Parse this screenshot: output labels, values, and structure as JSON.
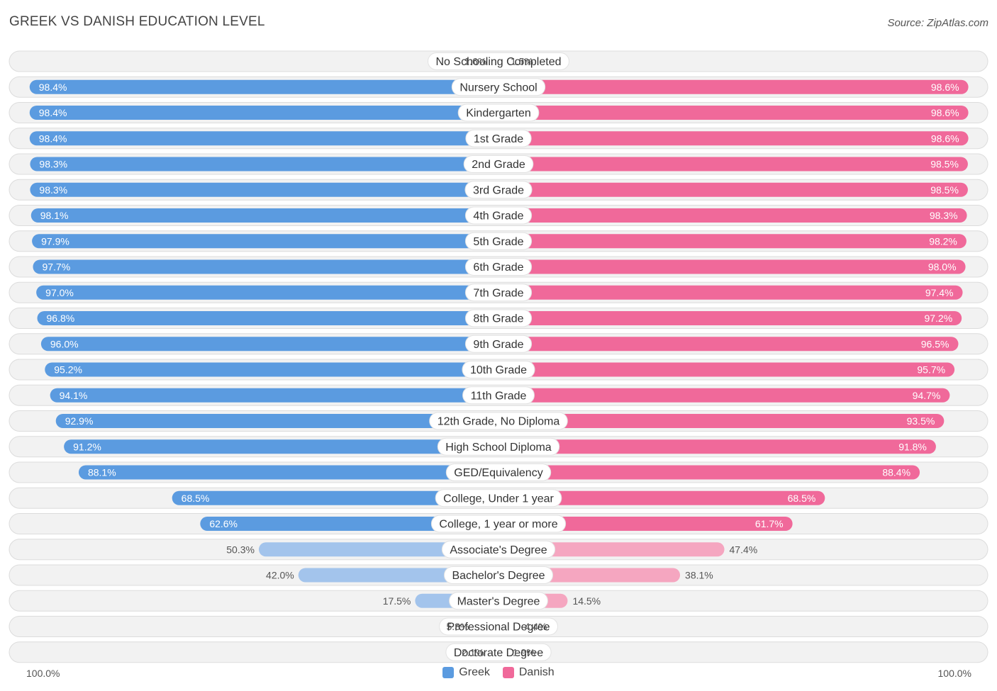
{
  "header": {
    "title": "GREEK VS DANISH EDUCATION LEVEL",
    "source": "Source: ZipAtlas.com"
  },
  "colors": {
    "greek_strong": "#5b9be0",
    "greek_light": "#a3c4ec",
    "danish_strong": "#f0699a",
    "danish_light": "#f5a6c0",
    "row_bg": "#f2f2f2",
    "row_border": "#dcdcdc"
  },
  "legend": {
    "greek_label": "Greek",
    "danish_label": "Danish"
  },
  "axis": {
    "left_label": "100.0%",
    "right_label": "100.0%"
  },
  "chart_data": {
    "type": "bar",
    "title": "GREEK VS DANISH EDUCATION LEVEL",
    "orientation": "horizontal-diverging",
    "xlim": [
      0,
      100
    ],
    "categories": [
      "No Schooling Completed",
      "Nursery School",
      "Kindergarten",
      "1st Grade",
      "2nd Grade",
      "3rd Grade",
      "4th Grade",
      "5th Grade",
      "6th Grade",
      "7th Grade",
      "8th Grade",
      "9th Grade",
      "10th Grade",
      "11th Grade",
      "12th Grade, No Diploma",
      "High School Diploma",
      "GED/Equivalency",
      "College, Under 1 year",
      "College, 1 year or more",
      "Associate's Degree",
      "Bachelor's Degree",
      "Master's Degree",
      "Professional Degree",
      "Doctorate Degree"
    ],
    "series": [
      {
        "name": "Greek",
        "values": [
          1.6,
          98.4,
          98.4,
          98.4,
          98.3,
          98.3,
          98.1,
          97.9,
          97.7,
          97.0,
          96.8,
          96.0,
          95.2,
          94.1,
          92.9,
          91.2,
          88.1,
          68.5,
          62.6,
          50.3,
          42.0,
          17.5,
          5.3,
          2.1
        ],
        "labels": [
          "1.6%",
          "98.4%",
          "98.4%",
          "98.4%",
          "98.3%",
          "98.3%",
          "98.1%",
          "97.9%",
          "97.7%",
          "97.0%",
          "96.8%",
          "96.0%",
          "95.2%",
          "94.1%",
          "92.9%",
          "91.2%",
          "88.1%",
          "68.5%",
          "62.6%",
          "50.3%",
          "42.0%",
          "17.5%",
          "5.3%",
          "2.1%"
        ]
      },
      {
        "name": "Danish",
        "values": [
          1.5,
          98.6,
          98.6,
          98.6,
          98.5,
          98.5,
          98.3,
          98.2,
          98.0,
          97.4,
          97.2,
          96.5,
          95.7,
          94.7,
          93.5,
          91.8,
          88.4,
          68.5,
          61.7,
          47.4,
          38.1,
          14.5,
          4.4,
          1.9
        ],
        "labels": [
          "1.5%",
          "98.6%",
          "98.6%",
          "98.6%",
          "98.5%",
          "98.5%",
          "98.3%",
          "98.2%",
          "98.0%",
          "97.4%",
          "97.2%",
          "96.5%",
          "95.7%",
          "94.7%",
          "93.5%",
          "91.8%",
          "88.4%",
          "68.5%",
          "61.7%",
          "47.4%",
          "38.1%",
          "14.5%",
          "4.4%",
          "1.9%"
        ]
      }
    ]
  }
}
